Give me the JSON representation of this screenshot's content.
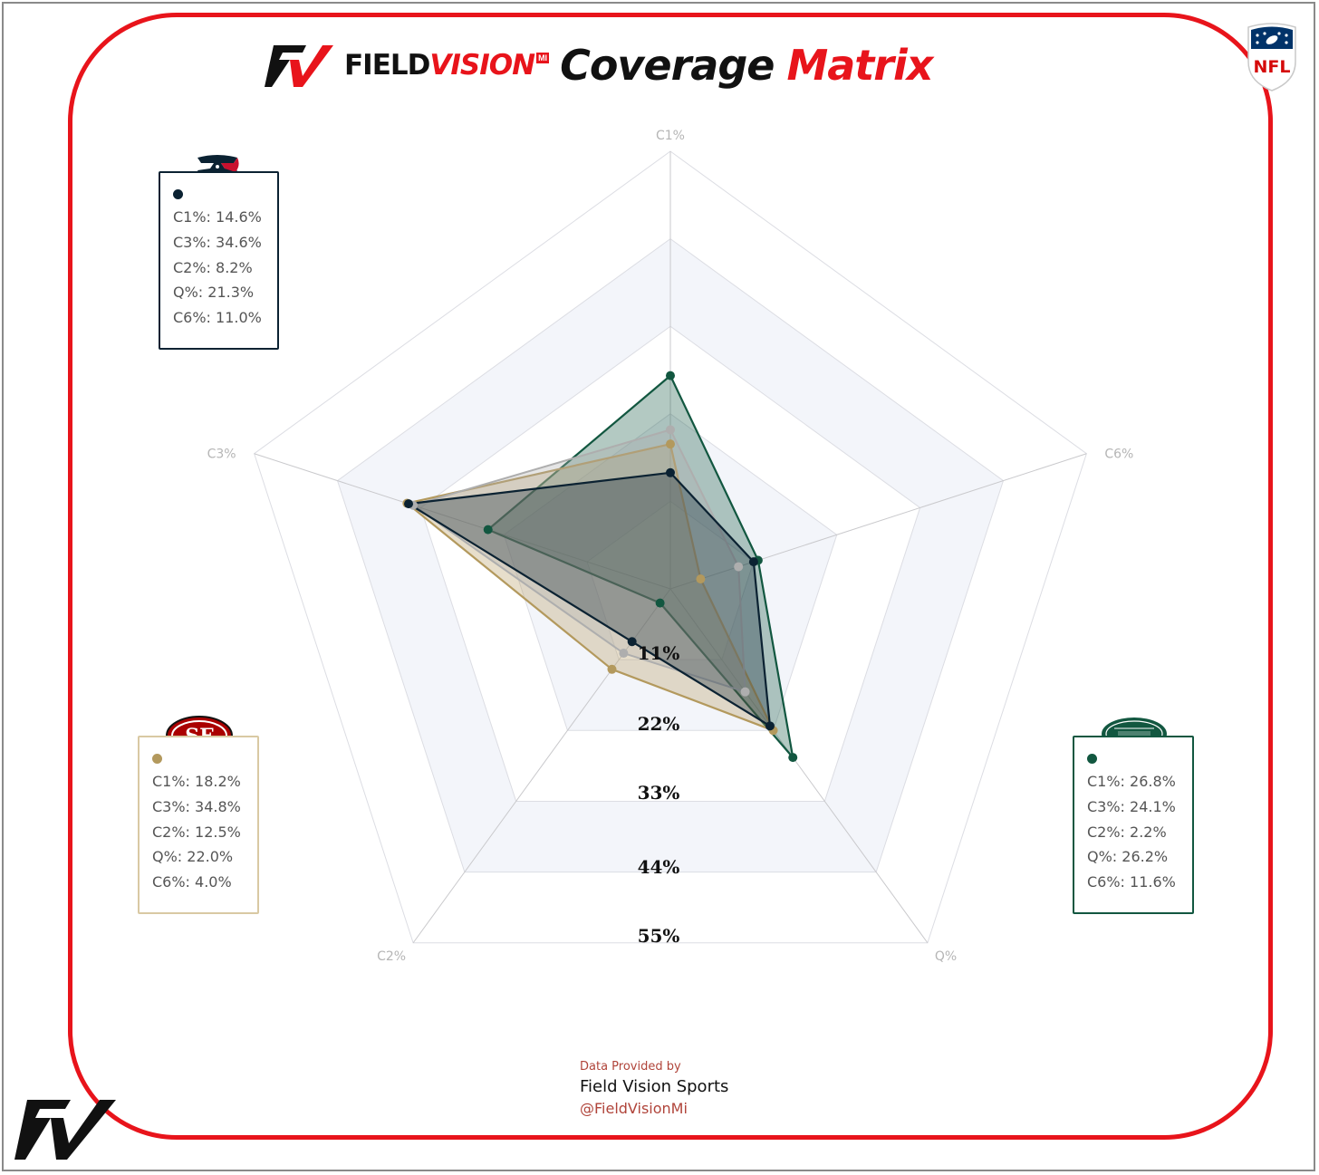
{
  "header": {
    "brand_field": "FIELD",
    "brand_vision": "VISION",
    "brand_mi": "MI",
    "title_coverage": "Coverage",
    "title_matrix": "Matrix"
  },
  "colors": {
    "frame": "#e8141b",
    "texans": "#0b2232",
    "niners": "#b3995d",
    "jets": "#125740"
  },
  "chart_data": {
    "type": "radar",
    "axes": [
      "C1%",
      "C6%",
      "Q%",
      "C2%",
      "C3%"
    ],
    "ring_labels": [
      "11%",
      "22%",
      "33%",
      "44%",
      "55%"
    ],
    "ring_values": [
      11,
      22,
      33,
      44,
      55
    ],
    "rmax": 55,
    "grid": true,
    "series": [
      {
        "id": "jets",
        "color": "#125740",
        "legend_lines": [
          "C1%: 26.8%",
          "C3%: 24.1%",
          "C2%: 2.2%",
          "Q%: 26.2%",
          "C6%: 11.6%"
        ],
        "values": {
          "C1%": 26.8,
          "C3%": 24.1,
          "C2%": 2.2,
          "Q%": 26.2,
          "C6%": 11.6
        }
      },
      {
        "id": "niners",
        "color": "#b3995d",
        "legend_lines": [
          "C1%: 18.2%",
          "C3%: 34.8%",
          "C2%: 12.5%",
          "Q%: 22.0%",
          "C6%: 4.0%"
        ],
        "values": {
          "C1%": 18.2,
          "C3%": 34.8,
          "C2%": 12.5,
          "Q%": 22.0,
          "C6%": 4.0
        }
      },
      {
        "id": "grey",
        "color": "#aeaeae",
        "legend_lines": [],
        "values": {
          "C1%": 20.0,
          "C3%": 34.0,
          "C2%": 10.0,
          "Q%": 16.0,
          "C6%": 9.0
        }
      },
      {
        "id": "texans",
        "color": "#0b2232",
        "legend_lines": [
          "C1%: 14.6%",
          "C3%: 34.6%",
          "C2%: 8.2%",
          "Q%: 21.3%",
          "C6%: 11.0%"
        ],
        "values": {
          "C1%": 14.6,
          "C3%": 34.6,
          "C2%": 8.2,
          "Q%": 21.3,
          "C6%": 11.0
        }
      }
    ]
  },
  "footer": {
    "provided_by": "Data Provided by",
    "company": "Field Vision Sports",
    "handle": "@FieldVisionMi"
  }
}
